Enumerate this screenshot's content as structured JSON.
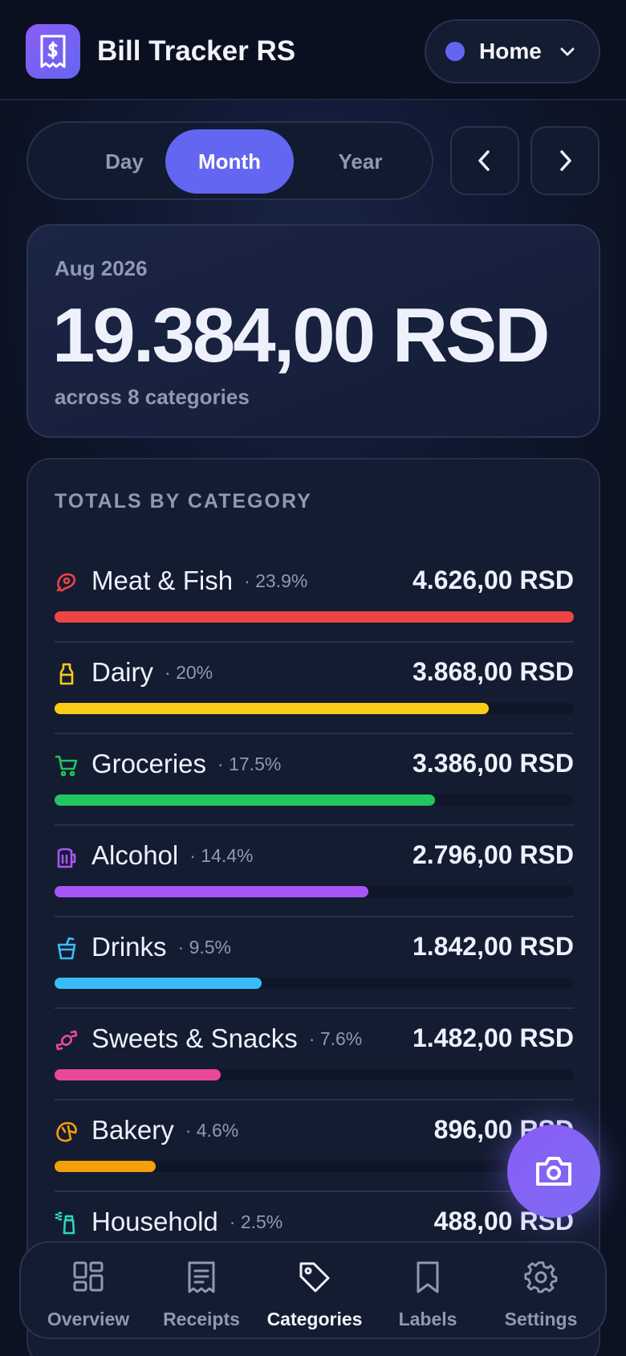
{
  "app": {
    "title": "Bill Tracker RS",
    "logo_icon": "receipt-icon"
  },
  "household": {
    "label": "Home",
    "dot_color": "#6366f1"
  },
  "period_tabs": [
    {
      "label": "Day",
      "active": false
    },
    {
      "label": "Month",
      "active": true
    },
    {
      "label": "Year",
      "active": false
    }
  ],
  "summary": {
    "period": "Aug 2026",
    "total": "19.384,00 RSD",
    "subtitle": "across 8 categories"
  },
  "categories_card": {
    "title": "TOTALS BY CATEGORY",
    "items": [
      {
        "name": "Meat & Fish",
        "pct": "· 23.9%",
        "amount": "4.626,00 RSD",
        "fill": 1.0,
        "color": "#ef4444",
        "icon": "meat-icon"
      },
      {
        "name": "Dairy",
        "pct": "· 20%",
        "amount": "3.868,00 RSD",
        "fill": 0.836,
        "color": "#facc15",
        "icon": "milk-bottle-icon"
      },
      {
        "name": "Groceries",
        "pct": "· 17.5%",
        "amount": "3.386,00 RSD",
        "fill": 0.732,
        "color": "#22c55e",
        "icon": "shopping-cart-icon"
      },
      {
        "name": "Alcohol",
        "pct": "· 14.4%",
        "amount": "2.796,00 RSD",
        "fill": 0.604,
        "color": "#a855f7",
        "icon": "beer-mug-icon"
      },
      {
        "name": "Drinks",
        "pct": "· 9.5%",
        "amount": "1.842,00 RSD",
        "fill": 0.398,
        "color": "#38bdf8",
        "icon": "cup-straw-icon"
      },
      {
        "name": "Sweets & Snacks",
        "pct": "· 7.6%",
        "amount": "1.482,00 RSD",
        "fill": 0.32,
        "color": "#ec4899",
        "icon": "candy-icon"
      },
      {
        "name": "Bakery",
        "pct": "· 4.6%",
        "amount": "896,00 RSD",
        "fill": 0.194,
        "color": "#f59e0b",
        "icon": "croissant-icon"
      },
      {
        "name": "Household",
        "pct": "· 2.5%",
        "amount": "488,00 RSD",
        "fill": 0.105,
        "color": "#2dd4bf",
        "icon": "spray-bottle-icon"
      }
    ]
  },
  "fab": {
    "icon": "camera-icon"
  },
  "tabbar": [
    {
      "label": "Overview",
      "icon": "grid-icon",
      "active": false
    },
    {
      "label": "Receipts",
      "icon": "receipt-list-icon",
      "active": false
    },
    {
      "label": "Categories",
      "icon": "tag-icon",
      "active": true
    },
    {
      "label": "Labels",
      "icon": "bookmark-icon",
      "active": false
    },
    {
      "label": "Settings",
      "icon": "gear-icon",
      "active": false
    }
  ]
}
